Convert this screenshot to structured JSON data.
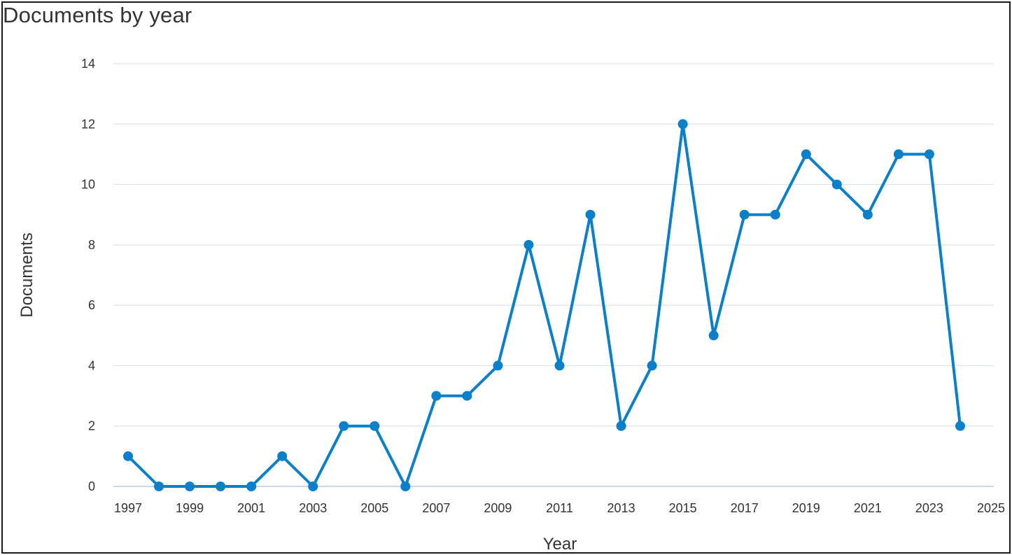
{
  "chart_data": {
    "type": "line",
    "title": "Documents by year",
    "xlabel": "Year",
    "ylabel": "Documents",
    "xlim": [
      1997,
      2025
    ],
    "ylim": [
      0,
      14
    ],
    "x_ticks": [
      "1997",
      "1999",
      "2001",
      "2003",
      "2005",
      "2007",
      "2009",
      "2011",
      "2013",
      "2015",
      "2017",
      "2019",
      "2021",
      "2023",
      "2025"
    ],
    "y_ticks": [
      "0",
      "2",
      "4",
      "6",
      "8",
      "10",
      "12",
      "14"
    ],
    "grid": true,
    "legend": "none",
    "series": [
      {
        "color": "#0a7fca",
        "points": [
          {
            "x": 1997,
            "y": 1
          },
          {
            "x": 1998,
            "y": 0
          },
          {
            "x": 1999,
            "y": 0
          },
          {
            "x": 2000,
            "y": 0
          },
          {
            "x": 2001,
            "y": 0
          },
          {
            "x": 2002,
            "y": 1
          },
          {
            "x": 2003,
            "y": 0
          },
          {
            "x": 2004,
            "y": 2
          },
          {
            "x": 2005,
            "y": 2
          },
          {
            "x": 2006,
            "y": 0
          },
          {
            "x": 2007,
            "y": 3
          },
          {
            "x": 2008,
            "y": 3
          },
          {
            "x": 2009,
            "y": 4
          },
          {
            "x": 2010,
            "y": 8
          },
          {
            "x": 2011,
            "y": 4
          },
          {
            "x": 2012,
            "y": 9
          },
          {
            "x": 2013,
            "y": 2
          },
          {
            "x": 2014,
            "y": 4
          },
          {
            "x": 2015,
            "y": 12
          },
          {
            "x": 2016,
            "y": 5
          },
          {
            "x": 2017,
            "y": 9
          },
          {
            "x": 2018,
            "y": 9
          },
          {
            "x": 2019,
            "y": 11
          },
          {
            "x": 2020,
            "y": 10
          },
          {
            "x": 2021,
            "y": 9
          },
          {
            "x": 2022,
            "y": 11
          },
          {
            "x": 2023,
            "y": 11
          },
          {
            "x": 2024,
            "y": 2
          }
        ]
      }
    ],
    "gridline_color": "#dde3ea",
    "baseline_color": "#b9cbe0"
  }
}
